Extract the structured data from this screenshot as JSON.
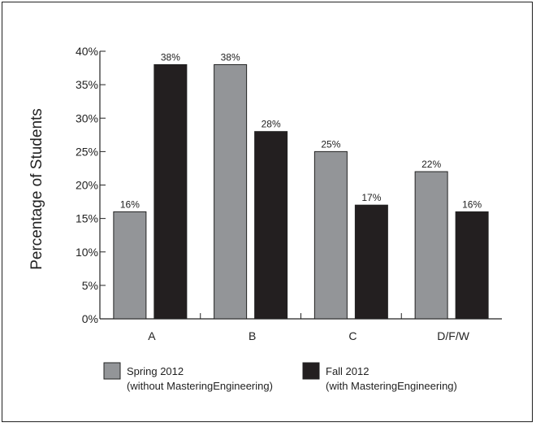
{
  "chart_data": {
    "type": "bar",
    "title": "",
    "xlabel": "",
    "ylabel": "Percentage of Students",
    "categories": [
      "A",
      "B",
      "C",
      "D/F/W"
    ],
    "ylim": [
      0,
      40
    ],
    "yticks": [
      "0%",
      "5%",
      "10%",
      "15%",
      "20%",
      "25%",
      "30%",
      "35%",
      "40%"
    ],
    "grid": false,
    "legend_position": "bottom",
    "series": [
      {
        "name": "Spring 2012",
        "legend_line2": "(without MasteringEngineering)",
        "color": "#939598",
        "values": [
          16,
          38,
          25,
          22
        ],
        "labels": [
          "16%",
          "38%",
          "25%",
          "22%"
        ]
      },
      {
        "name": "Fall 2012",
        "legend_line2": "(with MasteringEngineering)",
        "color": "#231f20",
        "values": [
          38,
          28,
          17,
          16
        ],
        "labels": [
          "38%",
          "28%",
          "17%",
          "16%"
        ]
      }
    ]
  }
}
